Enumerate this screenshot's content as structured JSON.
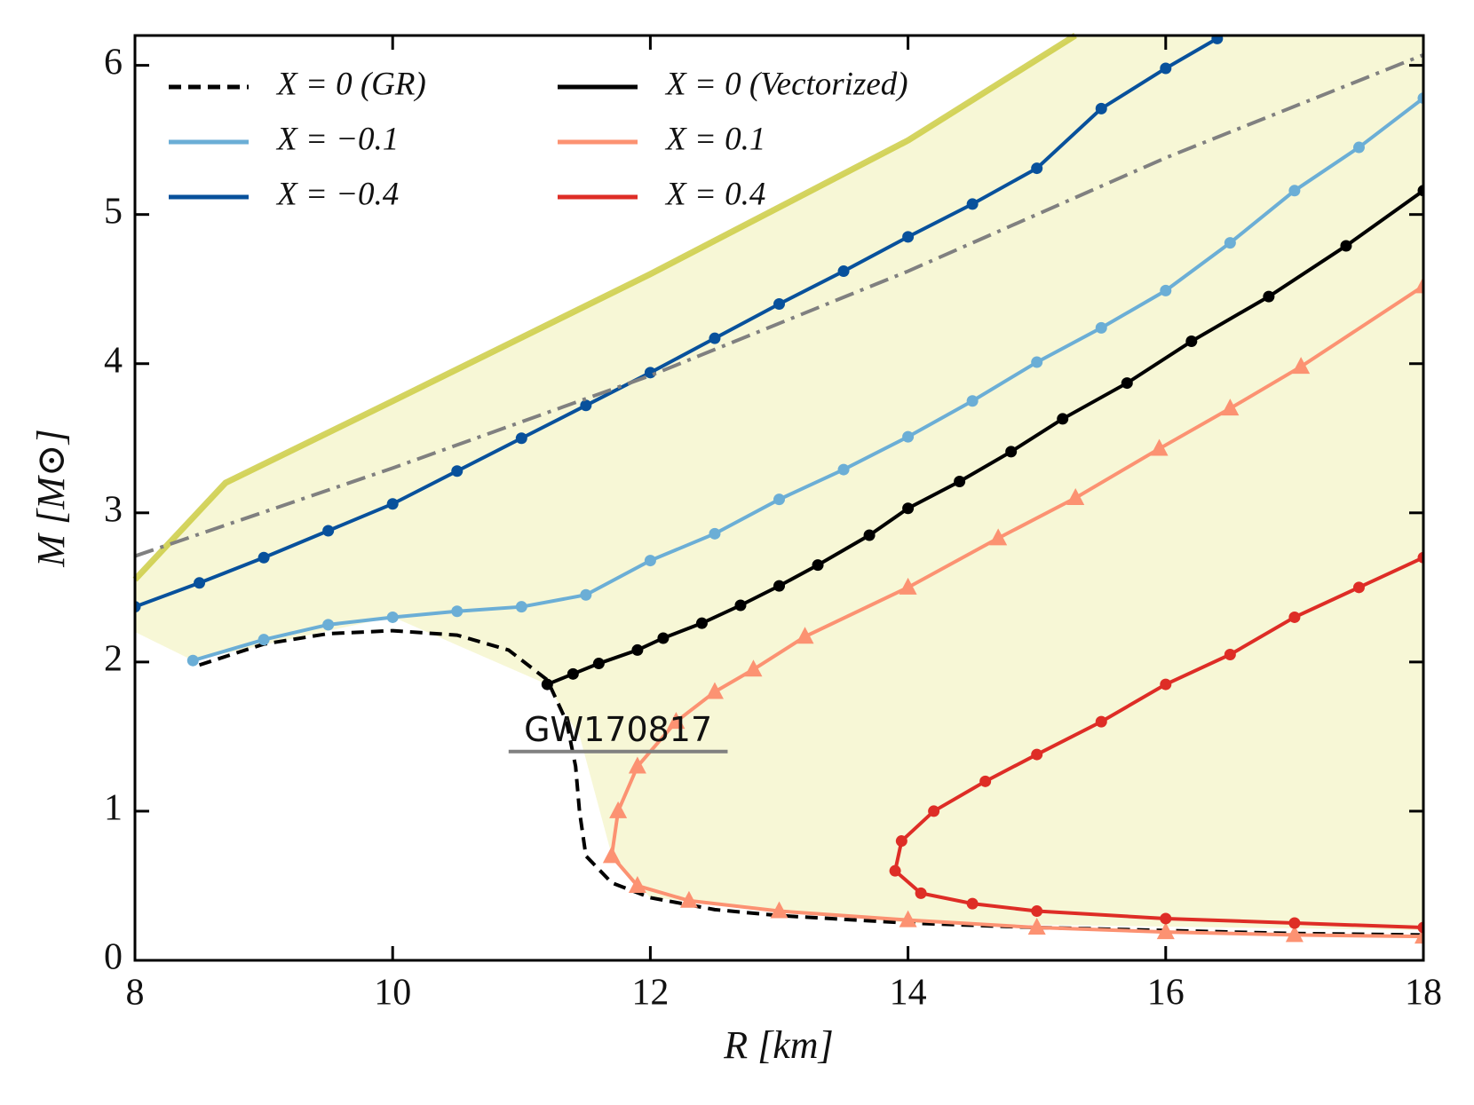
{
  "chart_data": {
    "type": "line",
    "xlabel": "R [km]",
    "ylabel": "M [M⊙]",
    "xlim": [
      8,
      18
    ],
    "xticks": [
      8,
      10,
      12,
      14,
      16,
      18
    ],
    "ylim": [
      0,
      6.2
    ],
    "yticks": [
      0,
      1,
      2,
      3,
      4,
      5,
      6
    ],
    "legend": "upper left",
    "series": [
      {
        "name": "X = 0 (GR)",
        "color": "#000000",
        "linestyle": "dashed",
        "marker": "none",
        "x": [
          8.5,
          9,
          9.5,
          10,
          10.5,
          10.9,
          11.2,
          11.35,
          11.42,
          11.45,
          11.5,
          11.7,
          12,
          12.5,
          13,
          14,
          15,
          16,
          17,
          18
        ],
        "values": [
          1.98,
          2.12,
          2.19,
          2.21,
          2.18,
          2.08,
          1.88,
          1.6,
          1.3,
          1.0,
          0.7,
          0.52,
          0.42,
          0.34,
          0.3,
          0.25,
          0.22,
          0.2,
          0.18,
          0.17
        ]
      },
      {
        "name": "X = −0.1",
        "color": "#6baed6",
        "linestyle": "solid",
        "marker": "circle",
        "x": [
          8.45,
          9,
          9.5,
          10,
          10.5,
          11,
          11.5,
          12,
          12.5,
          13,
          13.5,
          14,
          14.5,
          15,
          15.5,
          16,
          16.5,
          17,
          17.5,
          18
        ],
        "values": [
          2.01,
          2.15,
          2.25,
          2.3,
          2.34,
          2.37,
          2.45,
          2.68,
          2.86,
          3.09,
          3.29,
          3.51,
          3.75,
          4.01,
          4.24,
          4.49,
          4.81,
          5.16,
          5.45,
          5.78
        ]
      },
      {
        "name": "X = −0.4",
        "color": "#08519c",
        "linestyle": "solid",
        "marker": "circle",
        "x": [
          8,
          8.5,
          9,
          9.5,
          10,
          10.5,
          11,
          11.5,
          12,
          12.5,
          13,
          13.5,
          14,
          14.5,
          15,
          15.5,
          16,
          16.4
        ],
        "values": [
          2.37,
          2.53,
          2.7,
          2.88,
          3.06,
          3.28,
          3.5,
          3.72,
          3.94,
          4.17,
          4.4,
          4.62,
          4.85,
          5.07,
          5.31,
          5.71,
          5.98,
          6.18
        ]
      },
      {
        "name": "X = 0 (Vectorized)",
        "color": "#000000",
        "linestyle": "solid",
        "marker": "circle",
        "x": [
          11.2,
          11.4,
          11.6,
          11.9,
          12.1,
          12.4,
          12.7,
          13.0,
          13.3,
          13.7,
          14.0,
          14.4,
          14.8,
          15.2,
          15.7,
          16.2,
          16.8,
          17.4,
          18
        ],
        "values": [
          1.85,
          1.92,
          1.99,
          2.08,
          2.16,
          2.26,
          2.38,
          2.51,
          2.65,
          2.85,
          3.03,
          3.21,
          3.41,
          3.63,
          3.87,
          4.15,
          4.45,
          4.79,
          5.16
        ]
      },
      {
        "name": "X = 0.1",
        "color": "#fc9272",
        "linestyle": "solid",
        "marker": "triangle",
        "x": [
          18,
          17,
          16,
          15,
          14,
          13,
          12.3,
          11.9,
          11.7,
          11.75,
          11.9,
          12.2,
          12.5,
          12.8,
          13.2,
          14,
          14.7,
          15.3,
          15.95,
          16.5,
          17.05,
          18
        ],
        "values": [
          0.16,
          0.17,
          0.19,
          0.22,
          0.27,
          0.33,
          0.4,
          0.5,
          0.7,
          1.0,
          1.3,
          1.6,
          1.8,
          1.95,
          2.17,
          2.5,
          2.83,
          3.1,
          3.43,
          3.7,
          3.98,
          4.52
        ]
      },
      {
        "name": "X = 0.4",
        "color": "#de2d26",
        "linestyle": "solid",
        "marker": "circle",
        "x": [
          18,
          17,
          16,
          15,
          14.5,
          14.1,
          13.9,
          13.95,
          14.2,
          14.6,
          15,
          15.5,
          16,
          16.5,
          17,
          17.5,
          18
        ],
        "values": [
          0.22,
          0.25,
          0.28,
          0.33,
          0.38,
          0.45,
          0.6,
          0.8,
          1.0,
          1.2,
          1.38,
          1.6,
          1.85,
          2.05,
          2.3,
          2.5,
          2.7
        ]
      },
      {
        "color": "#808080",
        "linestyle": "dashdot",
        "marker": "none",
        "x": [
          8,
          10,
          12,
          14,
          16,
          18
        ],
        "values": [
          2.71,
          3.3,
          3.92,
          4.62,
          5.38,
          6.07
        ]
      }
    ],
    "annotation": {
      "text": "GW170817",
      "x": [
        10.9,
        12.6
      ],
      "y": 1.4,
      "color": "#808080"
    }
  }
}
